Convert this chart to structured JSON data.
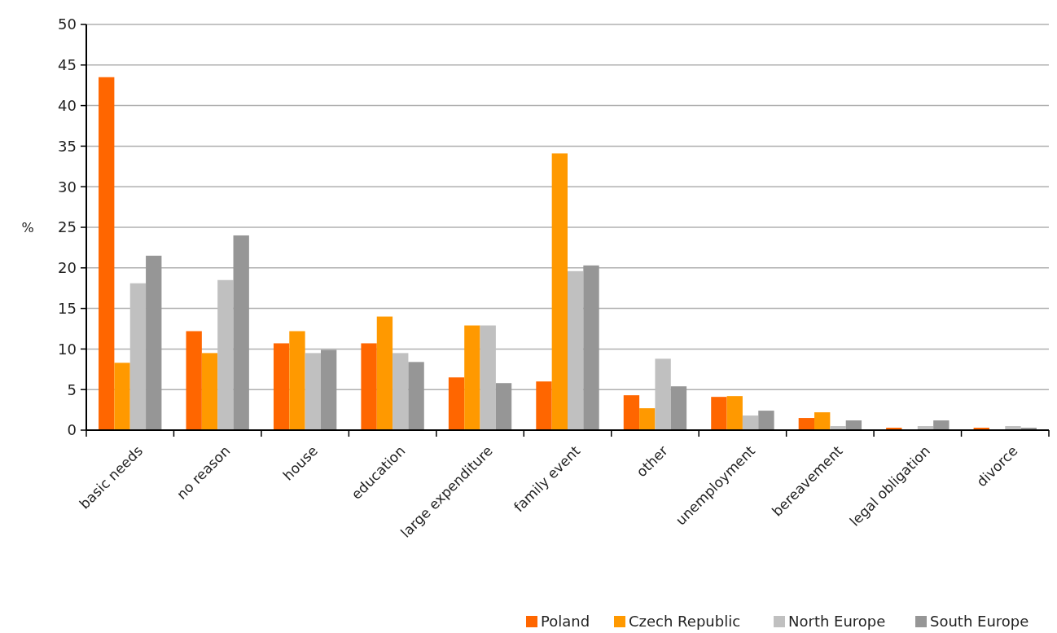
{
  "chart_data": {
    "type": "bar",
    "ylabel": "%",
    "categories": [
      "basic needs",
      "no reason",
      "house",
      "education",
      "large expenditure",
      "family event",
      "other",
      "unemployment",
      "bereavement",
      "legal obligation",
      "divorce"
    ],
    "series": [
      {
        "name": "Poland",
        "color": "#ff6600",
        "values": [
          43.5,
          12.2,
          10.7,
          10.7,
          6.5,
          6.0,
          4.3,
          4.1,
          1.5,
          0.3,
          0.3
        ]
      },
      {
        "name": "Czech Republic",
        "color": "#ff9900",
        "values": [
          8.3,
          9.5,
          12.2,
          14.0,
          12.9,
          34.1,
          2.7,
          4.2,
          2.2,
          0,
          0
        ]
      },
      {
        "name": "North Europe",
        "color": "#c0c0c0",
        "values": [
          18.1,
          18.5,
          9.5,
          9.5,
          12.9,
          19.6,
          8.8,
          1.8,
          0.5,
          0.5,
          0.5
        ]
      },
      {
        "name": "South Europe",
        "color": "#969696",
        "values": [
          21.5,
          24.0,
          9.9,
          8.4,
          5.8,
          20.3,
          5.4,
          2.4,
          1.2,
          1.2,
          0.3
        ]
      }
    ],
    "ylim": [
      0,
      50
    ],
    "yticks": [
      0,
      5,
      10,
      15,
      20,
      25,
      30,
      35,
      40,
      45,
      50
    ],
    "grid": "y",
    "legend": "bottom"
  }
}
